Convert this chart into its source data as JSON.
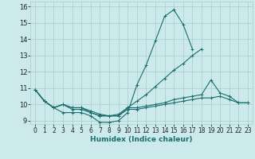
{
  "xlabel": "Humidex (Indice chaleur)",
  "xlim": [
    -0.5,
    23.5
  ],
  "ylim": [
    8.8,
    16.3
  ],
  "yticks": [
    9,
    10,
    11,
    12,
    13,
    14,
    15,
    16
  ],
  "xticks": [
    0,
    1,
    2,
    3,
    4,
    5,
    6,
    7,
    8,
    9,
    10,
    11,
    12,
    13,
    14,
    15,
    16,
    17,
    18,
    19,
    20,
    21,
    22,
    23
  ],
  "bg_color": "#cce9eb",
  "grid_color": "#aacccc",
  "line_color": "#1a6e6e",
  "xlabel_color": "#1a6e6e",
  "series": [
    {
      "x": [
        0,
        1,
        2,
        3,
        4,
        5,
        6,
        7,
        8,
        9,
        10,
        11,
        12,
        13,
        14,
        15,
        16,
        17
      ],
      "y": [
        10.9,
        10.2,
        9.8,
        9.5,
        9.5,
        9.5,
        9.3,
        8.9,
        8.9,
        9.0,
        9.5,
        11.2,
        12.4,
        13.9,
        15.4,
        15.8,
        14.9,
        13.4
      ]
    },
    {
      "x": [
        0,
        1,
        2,
        3,
        4,
        5,
        6,
        7,
        8,
        9,
        10,
        11,
        12,
        13,
        14,
        15,
        16,
        17,
        18
      ],
      "y": [
        10.9,
        10.2,
        9.8,
        10.0,
        9.8,
        9.8,
        9.6,
        9.4,
        9.3,
        9.4,
        9.8,
        10.2,
        10.6,
        11.1,
        11.6,
        12.1,
        12.5,
        13.0,
        13.4
      ]
    },
    {
      "x": [
        0,
        1,
        2,
        3,
        4,
        5,
        6,
        7,
        8,
        9,
        10,
        11,
        12,
        13,
        14,
        15,
        16,
        17,
        18,
        19,
        20,
        21,
        22,
        23
      ],
      "y": [
        10.9,
        10.2,
        9.8,
        10.0,
        9.8,
        9.8,
        9.5,
        9.3,
        9.3,
        9.3,
        9.8,
        9.8,
        9.9,
        10.0,
        10.1,
        10.3,
        10.4,
        10.5,
        10.6,
        11.5,
        10.7,
        10.5,
        10.1,
        10.1
      ]
    },
    {
      "x": [
        0,
        1,
        2,
        3,
        4,
        5,
        6,
        7,
        8,
        9,
        10,
        11,
        12,
        13,
        14,
        15,
        16,
        17,
        18,
        19,
        20,
        21,
        22,
        23
      ],
      "y": [
        10.9,
        10.2,
        9.8,
        10.0,
        9.7,
        9.7,
        9.5,
        9.3,
        9.3,
        9.3,
        9.7,
        9.7,
        9.8,
        9.9,
        10.0,
        10.1,
        10.2,
        10.3,
        10.4,
        10.4,
        10.5,
        10.3,
        10.1,
        10.1
      ]
    }
  ]
}
